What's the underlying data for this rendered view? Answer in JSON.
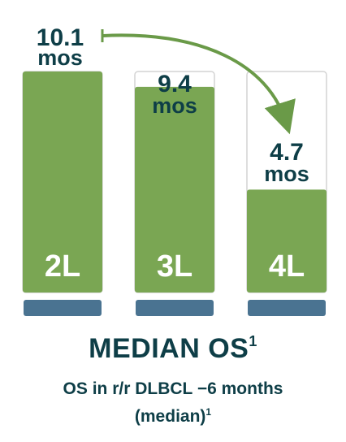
{
  "chart_data": {
    "type": "bar",
    "categories": [
      "2L",
      "3L",
      "4L"
    ],
    "values": [
      10.1,
      9.4,
      4.7
    ],
    "value_labels": [
      "10.1",
      "9.4",
      "4.7"
    ],
    "unit_label": "mos",
    "ylim": [
      0,
      10.1
    ],
    "grid": false,
    "legend": "none",
    "colors": {
      "bar": "#7aa653",
      "box_border": "#d4d4d4",
      "base": "#4a7391",
      "text": "#0e3e47",
      "arrow": "#6a9a48"
    }
  },
  "title": "MEDIAN OS",
  "title_sup": "1",
  "subtitle_line1": "OS in r/r DLBCL −6 months",
  "subtitle_line2": "(median)",
  "subtitle_sup": "1"
}
